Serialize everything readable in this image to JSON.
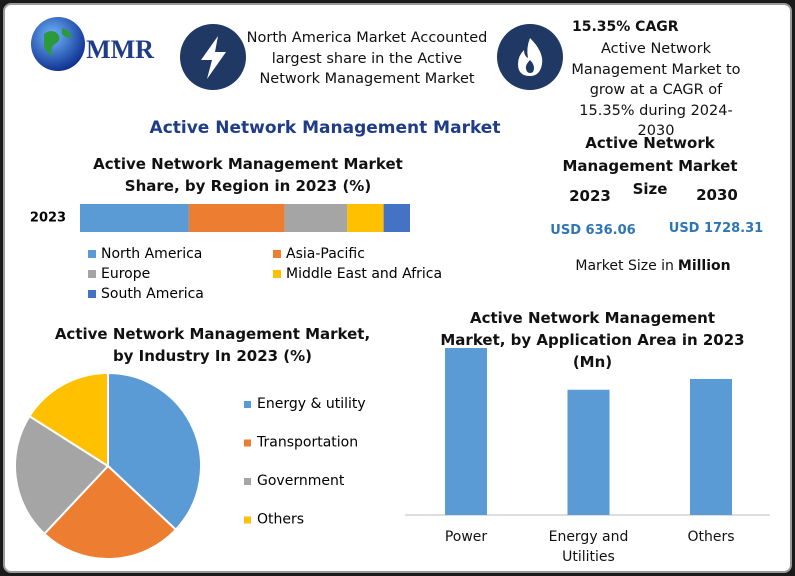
{
  "header": {
    "logo": "MMR",
    "fact1": "North America Market Accounted largest share in the Active Network Management Market",
    "fact2_title": "15.35% CAGR",
    "fact2": "Active Network Management Market to grow at a CAGR of 15.35% during 2024-2030"
  },
  "title": "Active Network Management Market",
  "market_size": {
    "title": "Active Network Management Market Size",
    "years": [
      "2023",
      "2030"
    ],
    "values": [
      "USD 636.06",
      "USD 1728.31"
    ],
    "note": "Market Size in",
    "unit": "Million"
  },
  "chart_data": [
    {
      "type": "stacked_bar",
      "title": "Active Network Management Market Share, by Region in 2023 (%)",
      "categories": [
        "2023"
      ],
      "series": [
        {
          "name": "North America",
          "color": "#5b9bd5",
          "values": [
            33
          ]
        },
        {
          "name": "Asia-Pacific",
          "color": "#ed7d31",
          "values": [
            29
          ]
        },
        {
          "name": "Europe",
          "color": "#a5a5a5",
          "values": [
            19
          ]
        },
        {
          "name": "Middle East and Africa",
          "color": "#ffc000",
          "values": [
            11
          ]
        },
        {
          "name": "South America",
          "color": "#4472c4",
          "values": [
            8
          ]
        }
      ]
    },
    {
      "type": "pie",
      "title": "Active Network Management Market, by Industry In 2023 (%)",
      "categories": [
        "Energy & utility",
        "Transportation",
        "Government",
        "Others"
      ],
      "values": [
        37,
        25,
        22,
        16
      ],
      "colors": [
        "#5b9bd5",
        "#ed7d31",
        "#a5a5a5",
        "#ffc000"
      ]
    },
    {
      "type": "bar",
      "title": "Active Network Management Market, by Application Area in 2023 (Mn)",
      "categories": [
        "Power",
        "Energy and Utilities",
        "Others"
      ],
      "values": [
        248,
        186,
        202
      ],
      "color": "#5b9bd5"
    }
  ]
}
